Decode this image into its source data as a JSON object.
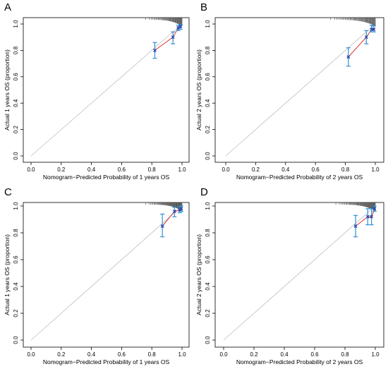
{
  "chart_data": [
    {
      "type": "scatter",
      "panel_label": "A",
      "xlabel": "Nomogram−Predicted Probability of 1 years OS",
      "ylabel": "Actual 1 years OS (proportion)",
      "xlim": [
        0.0,
        1.0
      ],
      "ylim": [
        0.0,
        1.0
      ],
      "x_ticks": [
        "0.0",
        "0.2",
        "0.4",
        "0.6",
        "0.8",
        "1.0"
      ],
      "y_ticks": [
        "0.0",
        "0.2",
        "0.4",
        "0.6",
        "0.8",
        "1.0"
      ],
      "points": [
        {
          "x": 0.82,
          "y": 0.8,
          "lo": 0.74,
          "hi": 0.86
        },
        {
          "x": 0.94,
          "y": 0.9,
          "lo": 0.85,
          "hi": 0.94
        },
        {
          "x": 0.975,
          "y": 0.97,
          "lo": 0.95,
          "hi": 0.99
        },
        {
          "x": 0.99,
          "y": 0.98,
          "lo": 0.96,
          "hi": 0.995
        }
      ],
      "rug": {
        "from": 0.76,
        "to": 1.0,
        "count": 48
      },
      "colors": {
        "calibration_line": "#d9342b",
        "points": "#2a3fa8",
        "error_bars": "#2f8fd4",
        "ideal_line": "#bfbfbf",
        "rug": "#555555"
      }
    },
    {
      "type": "scatter",
      "panel_label": "B",
      "xlabel": "Nomogram−Predicted Probability of 2 years OS",
      "ylabel": "Actual 2 years OS (proportion)",
      "xlim": [
        0.0,
        1.0
      ],
      "ylim": [
        0.0,
        1.0
      ],
      "x_ticks": [
        "0.0",
        "0.2",
        "0.4",
        "0.6",
        "0.8",
        "1.0"
      ],
      "y_ticks": [
        "0.0",
        "0.2",
        "0.4",
        "0.6",
        "0.8",
        "1.0"
      ],
      "points": [
        {
          "x": 0.82,
          "y": 0.75,
          "lo": 0.68,
          "hi": 0.82
        },
        {
          "x": 0.94,
          "y": 0.9,
          "lo": 0.85,
          "hi": 0.95
        },
        {
          "x": 0.975,
          "y": 0.96,
          "lo": 0.94,
          "hi": 0.99
        },
        {
          "x": 0.99,
          "y": 0.96,
          "lo": 0.94,
          "hi": 0.985
        }
      ],
      "rug": {
        "from": 0.7,
        "to": 1.0,
        "count": 52
      },
      "colors": {
        "calibration_line": "#d9342b",
        "points": "#2a3fa8",
        "error_bars": "#2f8fd4",
        "ideal_line": "#bfbfbf",
        "rug": "#555555"
      }
    },
    {
      "type": "scatter",
      "panel_label": "C",
      "xlabel": "Nomogram−Predicted Probability of 1 years OS",
      "ylabel": "Actual 1 years OS (proportion)",
      "xlim": [
        0.0,
        1.0
      ],
      "ylim": [
        0.0,
        1.0
      ],
      "x_ticks": [
        "0.0",
        "0.2",
        "0.4",
        "0.6",
        "0.8",
        "1.0"
      ],
      "y_ticks": [
        "0.0",
        "0.2",
        "0.4",
        "0.6",
        "0.8",
        "1.0"
      ],
      "points": [
        {
          "x": 0.87,
          "y": 0.85,
          "lo": 0.77,
          "hi": 0.94
        },
        {
          "x": 0.95,
          "y": 0.96,
          "lo": 0.92,
          "hi": 0.99
        },
        {
          "x": 0.985,
          "y": 0.97,
          "lo": 0.95,
          "hi": 0.995
        },
        {
          "x": 0.995,
          "y": 0.98,
          "lo": 0.96,
          "hi": 1.0
        }
      ],
      "rug": {
        "from": 0.76,
        "to": 1.0,
        "count": 60
      },
      "colors": {
        "calibration_line": "#d9342b",
        "points": "#2a3fa8",
        "error_bars": "#2f8fd4",
        "ideal_line": "#bfbfbf",
        "rug": "#555555"
      }
    },
    {
      "type": "scatter",
      "panel_label": "D",
      "xlabel": "Nomogram−Predicted Probability of 2 years OS",
      "ylabel": "Actual 2 years OS (proportion)",
      "xlim": [
        0.0,
        1.0
      ],
      "ylim": [
        0.0,
        1.0
      ],
      "x_ticks": [
        "0.0",
        "0.2",
        "0.4",
        "0.6",
        "0.8",
        "1.0"
      ],
      "y_ticks": [
        "0.0",
        "0.2",
        "0.4",
        "0.6",
        "0.8",
        "1.0"
      ],
      "points": [
        {
          "x": 0.87,
          "y": 0.85,
          "lo": 0.77,
          "hi": 0.93
        },
        {
          "x": 0.95,
          "y": 0.92,
          "lo": 0.86,
          "hi": 0.98
        },
        {
          "x": 0.975,
          "y": 0.92,
          "lo": 0.86,
          "hi": 0.98
        },
        {
          "x": 0.995,
          "y": 0.98,
          "lo": 0.96,
          "hi": 1.0
        }
      ],
      "rug": {
        "from": 0.74,
        "to": 1.0,
        "count": 60
      },
      "colors": {
        "calibration_line": "#d9342b",
        "points": "#2a3fa8",
        "error_bars": "#2f8fd4",
        "ideal_line": "#bfbfbf",
        "rug": "#555555"
      }
    }
  ]
}
